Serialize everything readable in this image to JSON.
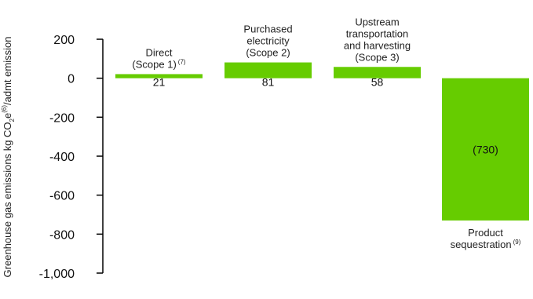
{
  "chart_data": {
    "type": "bar",
    "ylabel_parts": {
      "main": "Greenhouse gas emissions kg CO",
      "sub": "2",
      "mid": "e",
      "sup": "(6)",
      "tail": "/admt emission"
    },
    "ylim": [
      -1000,
      200
    ],
    "yticks": [
      200,
      0,
      -200,
      -400,
      -600,
      -800,
      -1000
    ],
    "ytick_labels": [
      "200",
      "0",
      "-200",
      "-400",
      "-600",
      "-800",
      "-1,000"
    ],
    "bar_color": "#66cc00",
    "categories": [
      {
        "lines": [
          "Direct",
          "(Scope 1)"
        ],
        "sup": "(7)",
        "value": 21,
        "value_label": "21"
      },
      {
        "lines": [
          "Purchased",
          "electricity",
          "(Scope 2)"
        ],
        "sup": "",
        "value": 81,
        "value_label": "81"
      },
      {
        "lines": [
          "Upstream",
          "transportation",
          "and harvesting",
          "(Scope 3)"
        ],
        "sup": "",
        "value": 58,
        "value_label": "58"
      },
      {
        "lines": [
          "Product",
          "sequestration"
        ],
        "sup": "(9)",
        "value": -730,
        "value_label": "(730)"
      }
    ]
  }
}
